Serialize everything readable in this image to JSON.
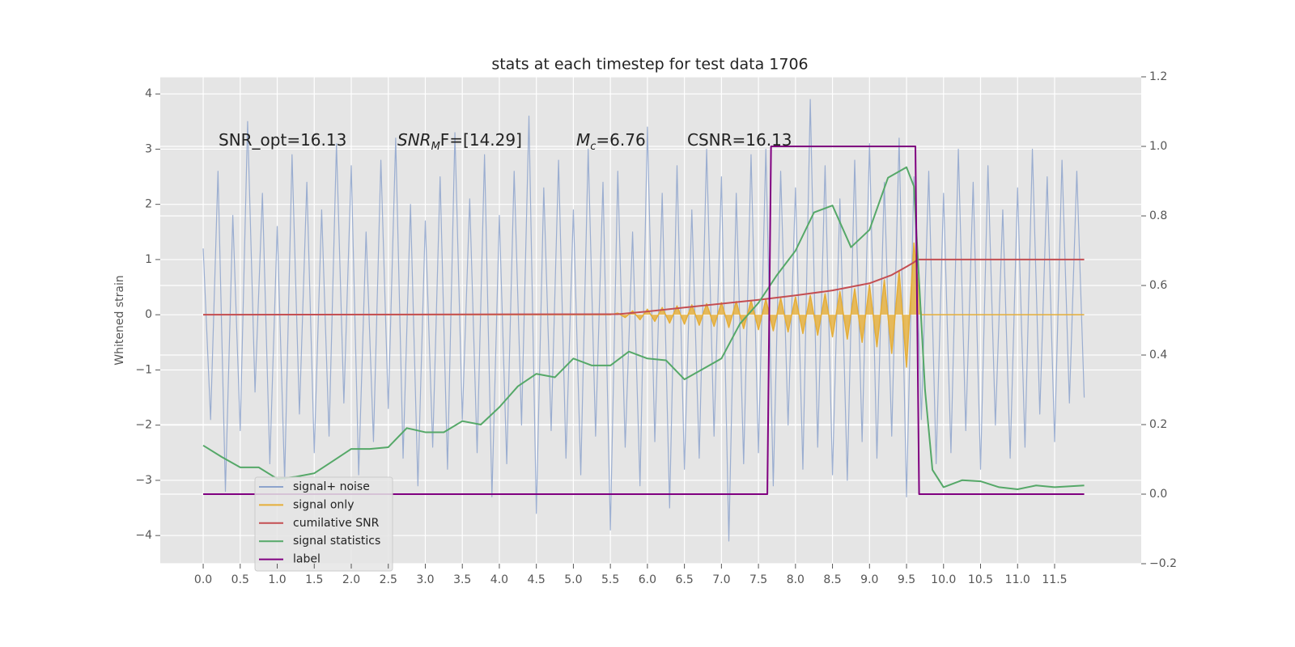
{
  "chart_data": {
    "type": "line",
    "title": "stats at each timestep for test data 1706",
    "y_label": "Whitened strain",
    "annotations": [
      {
        "text": "SNR_opt=16.13"
      },
      {
        "text": "SNR",
        "sub": "M",
        "rest": "F=[14.29]"
      },
      {
        "text": "M",
        "sub": "c",
        "rest": "=6.76"
      },
      {
        "text": "CSNR=16.13"
      }
    ],
    "xlim": [
      -0.58,
      12.67
    ],
    "ylim": [
      -4.51,
      4.31
    ],
    "y2lim": [
      -0.2,
      1.2
    ],
    "grid": true,
    "legend": "lower left",
    "xticks": [
      {
        "value": 0,
        "label": "0.0"
      },
      {
        "value": 0.5,
        "label": "0.5"
      },
      {
        "value": 1,
        "label": "1.0"
      },
      {
        "value": 1.5,
        "label": "1.5"
      },
      {
        "value": 2,
        "label": "2.0"
      },
      {
        "value": 2.5,
        "label": "2.5"
      },
      {
        "value": 3,
        "label": "3.0"
      },
      {
        "value": 3.5,
        "label": "3.5"
      },
      {
        "value": 4,
        "label": "4.0"
      },
      {
        "value": 4.5,
        "label": "4.5"
      },
      {
        "value": 5,
        "label": "5.0"
      },
      {
        "value": 5.5,
        "label": "5.5"
      },
      {
        "value": 6,
        "label": "6.0"
      },
      {
        "value": 6.5,
        "label": "6.5"
      },
      {
        "value": 7,
        "label": "7.0"
      },
      {
        "value": 7.5,
        "label": "7.5"
      },
      {
        "value": 8,
        "label": "8.0"
      },
      {
        "value": 8.5,
        "label": "8.5"
      },
      {
        "value": 9,
        "label": "9.0"
      },
      {
        "value": 9.5,
        "label": "9.5"
      },
      {
        "value": 10,
        "label": "10.0"
      },
      {
        "value": 10.5,
        "label": "10.5"
      },
      {
        "value": 11,
        "label": "11.0"
      },
      {
        "value": 11.5,
        "label": "11.5"
      }
    ],
    "yticks": [
      {
        "value": -4,
        "label": "−4"
      },
      {
        "value": -3,
        "label": "−3"
      },
      {
        "value": -2,
        "label": "−2"
      },
      {
        "value": -1,
        "label": "−1"
      },
      0,
      1,
      2,
      3,
      4
    ],
    "y2ticks": [
      {
        "value": -0.2,
        "label": "−0.2"
      },
      {
        "value": 0,
        "label": "0.0"
      },
      {
        "value": 0.2,
        "label": "0.2"
      },
      {
        "value": 0.4,
        "label": "0.4"
      },
      {
        "value": 0.6,
        "label": "0.6"
      },
      {
        "value": 0.8,
        "label": "0.8"
      },
      {
        "value": 1,
        "label": "1.0"
      },
      {
        "value": 1.2,
        "label": "1.2"
      }
    ],
    "series": [
      {
        "name": "signal+ noise",
        "color": "#8da3cc",
        "x": [
          0,
          0.1,
          0.2,
          0.3,
          0.4,
          0.5,
          0.6,
          0.7,
          0.8,
          0.9,
          1,
          1.1,
          1.2,
          1.3,
          1.4,
          1.5,
          1.6,
          1.7,
          1.8,
          1.9,
          2,
          2.1,
          2.2,
          2.3,
          2.4,
          2.5,
          2.6,
          2.7,
          2.8,
          2.9,
          3,
          3.1,
          3.2,
          3.3,
          3.4,
          3.5,
          3.6,
          3.7,
          3.8,
          3.9,
          4,
          4.1,
          4.2,
          4.3,
          4.4,
          4.5,
          4.6,
          4.7,
          4.8,
          4.9,
          5,
          5.1,
          5.2,
          5.3,
          5.4,
          5.5,
          5.6,
          5.7,
          5.8,
          5.9,
          6,
          6.1,
          6.2,
          6.3,
          6.4,
          6.5,
          6.6,
          6.7,
          6.8,
          6.9,
          7,
          7.1,
          7.2,
          7.3,
          7.4,
          7.5,
          7.6,
          7.7,
          7.8,
          7.9,
          8,
          8.1,
          8.2,
          8.3,
          8.4,
          8.5,
          8.6,
          8.7,
          8.8,
          8.9,
          9,
          9.1,
          9.2,
          9.3,
          9.4,
          9.5,
          9.6,
          9.7,
          9.8,
          9.9,
          10,
          10.1,
          10.2,
          10.3,
          10.4,
          10.5,
          10.6,
          10.7,
          10.8,
          10.9,
          11,
          11.1,
          11.2,
          11.3,
          11.4,
          11.5,
          11.6,
          11.7,
          11.8,
          11.9
        ],
        "values": [
          1.2,
          -1.9,
          2.6,
          -3.2,
          1.8,
          -2.1,
          3.5,
          -1.4,
          2.2,
          -2.7,
          1.6,
          -3.0,
          2.9,
          -1.8,
          2.4,
          -2.5,
          1.9,
          -2.2,
          3.1,
          -1.6,
          2.7,
          -2.9,
          1.5,
          -2.3,
          2.8,
          -1.7,
          3.2,
          -2.6,
          2.0,
          -3.1,
          1.7,
          -2.4,
          2.5,
          -2.8,
          3.3,
          -1.9,
          2.1,
          -2.5,
          2.9,
          -3.3,
          1.8,
          -2.7,
          2.6,
          -2.0,
          3.6,
          -3.6,
          2.3,
          -2.1,
          2.8,
          -2.6,
          1.9,
          -2.9,
          3.0,
          -2.2,
          2.4,
          -3.9,
          2.6,
          -2.4,
          1.5,
          -3.1,
          3.4,
          -2.3,
          2.2,
          -3.5,
          2.7,
          -2.8,
          1.9,
          -2.6,
          3.0,
          -2.2,
          2.5,
          -4.1,
          2.2,
          -2.7,
          2.9,
          -2.5,
          3.0,
          -3.1,
          2.6,
          -2.0,
          2.3,
          -2.8,
          3.9,
          -2.4,
          2.7,
          -2.9,
          2.1,
          -3.0,
          2.8,
          -2.3,
          3.1,
          -2.6,
          2.4,
          -2.2,
          3.2,
          -3.3,
          2.5,
          -1.9,
          2.6,
          -2.7,
          2.2,
          -2.5,
          3.0,
          -2.1,
          2.4,
          -2.8,
          2.7,
          -2.0,
          1.9,
          -2.6,
          2.3,
          -2.4,
          3.0,
          -1.8,
          2.5,
          -2.3,
          2.8,
          -1.6,
          2.6,
          -1.5
        ]
      },
      {
        "name": "signal only",
        "color": "#e5ae38",
        "fill": true,
        "x": [
          0,
          5.5,
          5.6,
          5.7,
          5.8,
          5.9,
          6,
          6.1,
          6.2,
          6.3,
          6.4,
          6.5,
          6.6,
          6.7,
          6.8,
          6.9,
          7,
          7.1,
          7.2,
          7.3,
          7.4,
          7.5,
          7.6,
          7.7,
          7.8,
          7.9,
          8,
          8.1,
          8.2,
          8.3,
          8.4,
          8.5,
          8.6,
          8.7,
          8.8,
          8.9,
          9,
          9.1,
          9.2,
          9.3,
          9.4,
          9.5,
          9.6,
          9.7,
          11.9
        ],
        "values": [
          0,
          0,
          0.03,
          -0.05,
          0.07,
          -0.09,
          0.1,
          -0.12,
          0.13,
          -0.15,
          0.16,
          -0.17,
          0.18,
          -0.19,
          0.2,
          -0.21,
          0.22,
          -0.23,
          0.24,
          -0.25,
          0.26,
          -0.27,
          0.28,
          -0.29,
          0.3,
          -0.31,
          0.32,
          -0.34,
          0.35,
          -0.37,
          0.38,
          -0.4,
          0.42,
          -0.44,
          0.47,
          -0.5,
          0.54,
          -0.58,
          0.63,
          -0.7,
          0.8,
          -0.95,
          1.3,
          0,
          0
        ]
      },
      {
        "name": "cumilative SNR",
        "color": "#c44e52",
        "x": [
          0,
          5.6,
          6,
          6.5,
          7,
          7.5,
          8,
          8.5,
          9,
          9.3,
          9.5,
          9.6,
          9.65,
          11.9
        ],
        "values": [
          0,
          0.01,
          0.06,
          0.13,
          0.2,
          0.27,
          0.35,
          0.44,
          0.57,
          0.72,
          0.87,
          0.95,
          1,
          1
        ]
      },
      {
        "name": "signal statistics",
        "color": "#55a868",
        "axis": "y2",
        "x": [
          0,
          0.25,
          0.5,
          0.75,
          1,
          1.25,
          1.5,
          1.75,
          2,
          2.25,
          2.5,
          2.75,
          3,
          3.25,
          3.5,
          3.75,
          4,
          4.25,
          4.5,
          4.75,
          5,
          5.25,
          5.5,
          5.75,
          6,
          6.25,
          6.5,
          6.75,
          7,
          7.25,
          7.5,
          7.75,
          8,
          8.25,
          8.5,
          8.75,
          9,
          9.25,
          9.5,
          9.6,
          9.75,
          9.85,
          10,
          10.25,
          10.5,
          10.75,
          11,
          11.25,
          11.5,
          11.9
        ],
        "values": [
          0.14,
          0.107,
          0.077,
          0.077,
          0.044,
          0.05,
          0.06,
          0.095,
          0.13,
          0.13,
          0.135,
          0.19,
          0.178,
          0.178,
          0.21,
          0.2,
          0.25,
          0.31,
          0.346,
          0.336,
          0.39,
          0.37,
          0.37,
          0.41,
          0.39,
          0.385,
          0.33,
          0.36,
          0.39,
          0.49,
          0.55,
          0.63,
          0.7,
          0.81,
          0.83,
          0.71,
          0.76,
          0.91,
          0.94,
          0.885,
          0.3,
          0.07,
          0.02,
          0.04,
          0.037,
          0.02,
          0.014,
          0.025,
          0.02,
          0.025
        ]
      },
      {
        "name": "label",
        "color": "#800080",
        "axis": "y2",
        "x": [
          0,
          7.62,
          7.67,
          9.62,
          9.67,
          11.9
        ],
        "values": [
          0,
          0,
          1,
          1,
          0,
          0
        ]
      }
    ]
  }
}
